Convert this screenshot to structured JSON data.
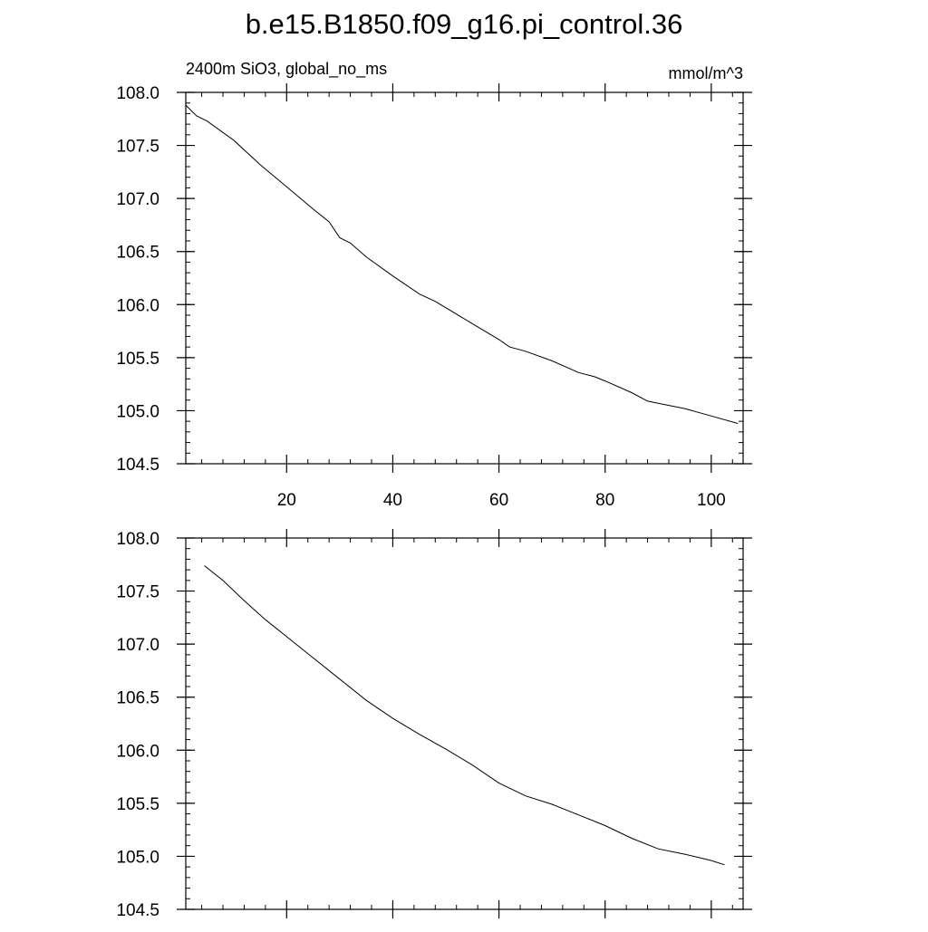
{
  "title": "b.e15.B1850.f09_g16.pi_control.36",
  "chart_data": [
    {
      "type": "line",
      "left_label": "2400m SiO3, global_no_ms",
      "right_label": "mmol/m^3",
      "xlim": [
        1,
        106
      ],
      "ylim": [
        104.5,
        108.0
      ],
      "xticks": [
        20,
        40,
        60,
        80,
        100
      ],
      "xtick_labels": [
        "20",
        "40",
        "60",
        "80",
        "100"
      ],
      "yticks": [
        104.5,
        105.0,
        105.5,
        106.0,
        106.5,
        107.0,
        107.5,
        108.0
      ],
      "ytick_labels": [
        "104.5",
        "105.0",
        "105.5",
        "106.0",
        "106.5",
        "107.0",
        "107.5",
        "108.0"
      ],
      "series": [
        {
          "x": [
            1,
            3,
            5,
            10,
            15,
            20,
            25,
            28,
            30,
            32,
            35,
            40,
            45,
            48,
            50,
            55,
            60,
            62,
            65,
            70,
            75,
            78,
            80,
            85,
            88,
            90,
            95,
            100,
            105
          ],
          "values": [
            107.88,
            107.78,
            107.73,
            107.55,
            107.32,
            107.11,
            106.9,
            106.78,
            106.63,
            106.58,
            106.45,
            106.27,
            106.1,
            106.03,
            105.97,
            105.82,
            105.67,
            105.6,
            105.56,
            105.47,
            105.36,
            105.32,
            105.28,
            105.17,
            105.09,
            105.07,
            105.02,
            104.95,
            104.88
          ]
        }
      ]
    },
    {
      "type": "line",
      "xlim": [
        1,
        106
      ],
      "ylim": [
        104.5,
        108.0
      ],
      "xticks": [
        20,
        40,
        60,
        80,
        100
      ],
      "yticks": [
        104.5,
        105.0,
        105.5,
        106.0,
        106.5,
        107.0,
        107.5,
        108.0
      ],
      "ytick_labels": [
        "104.5",
        "105.0",
        "105.5",
        "106.0",
        "106.5",
        "107.0",
        "107.5",
        "108.0"
      ],
      "series": [
        {
          "x": [
            4.5,
            8,
            12,
            16,
            20,
            25,
            30,
            35,
            40,
            45,
            50,
            55,
            60,
            65,
            70,
            75,
            80,
            85,
            90,
            95,
            100,
            102.5
          ],
          "values": [
            107.74,
            107.6,
            107.41,
            107.23,
            107.07,
            106.87,
            106.67,
            106.47,
            106.3,
            106.15,
            106.01,
            105.86,
            105.69,
            105.57,
            105.49,
            105.39,
            105.29,
            105.17,
            105.07,
            105.02,
            104.96,
            104.92
          ]
        }
      ]
    }
  ]
}
